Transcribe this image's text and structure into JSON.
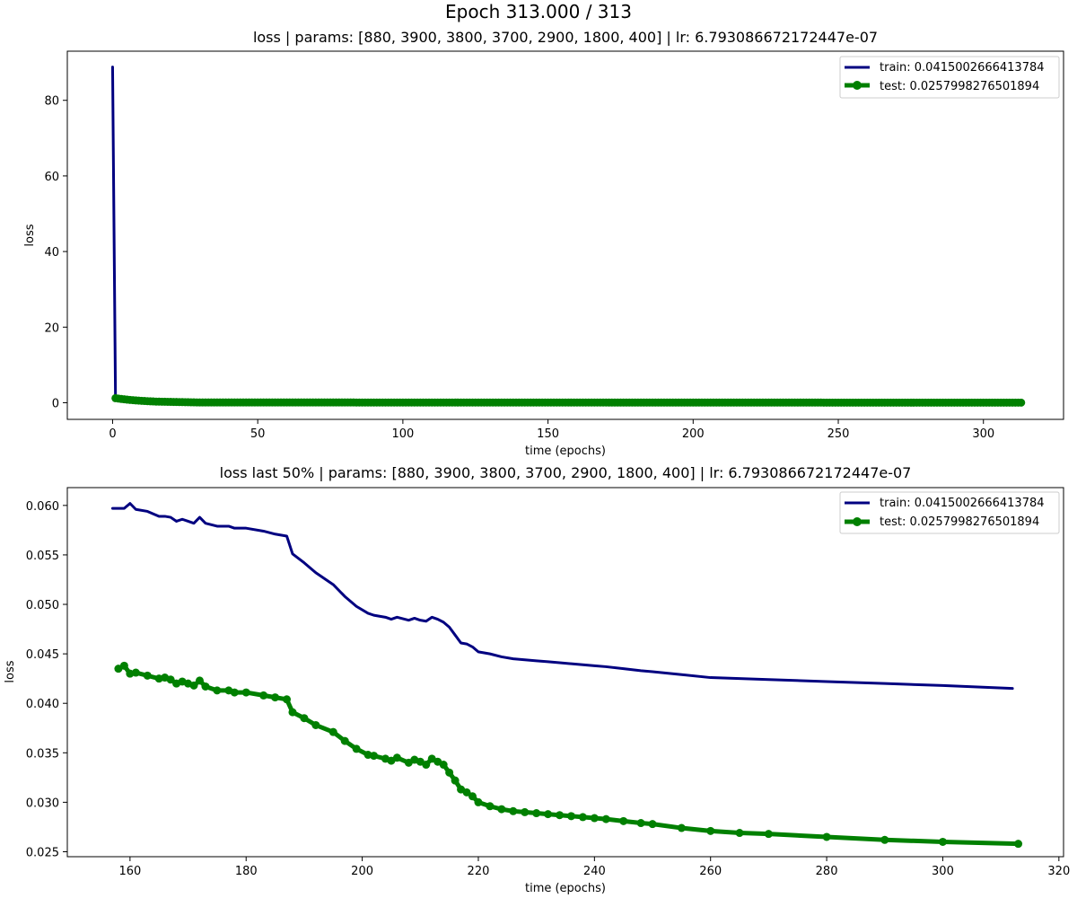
{
  "figure": {
    "suptitle": "Epoch 313.000 / 313"
  },
  "chart_data": [
    {
      "type": "line",
      "title": "loss  | params: [880, 3900, 3800, 3700, 2900, 1800, 400] | lr: 6.793086672172447e-07",
      "xlabel": "time (epochs)",
      "ylabel": "loss",
      "xlim": [
        -15.6,
        327.6
      ],
      "ylim": [
        -4.4,
        93.0
      ],
      "xticks": [
        0,
        50,
        100,
        150,
        200,
        250,
        300
      ],
      "yticks": [
        0,
        20,
        40,
        60,
        80
      ],
      "xtick_labels": [
        "0",
        "50",
        "100",
        "150",
        "200",
        "250",
        "300"
      ],
      "ytick_labels": [
        "0",
        "20",
        "40",
        "60",
        "80"
      ],
      "grid": false,
      "legend_position": "top-right",
      "series": [
        {
          "name": "train: 0.0415002666413784",
          "color": "#000080",
          "marker": "none",
          "x": [
            0,
            1,
            2,
            4,
            6,
            10,
            15,
            20,
            25,
            30,
            50,
            100,
            150,
            200,
            250,
            312
          ],
          "y": [
            88.8,
            1.2,
            0.7,
            0.5,
            0.4,
            0.3,
            0.2,
            0.15,
            0.1,
            0.08,
            0.07,
            0.06,
            0.055,
            0.05,
            0.045,
            0.0415
          ]
        },
        {
          "name": "test: 0.0257998276501894",
          "color": "#008000",
          "marker": "circle",
          "x_start": 1,
          "x_end": 313,
          "y_start": 1.2,
          "y_mid": 0.5,
          "y_end": 0.0258
        }
      ]
    },
    {
      "type": "line",
      "title": "loss last 50% | params: [880, 3900, 3800, 3700, 2900, 1800, 400] | lr: 6.793086672172447e-07",
      "xlabel": "time (epochs)",
      "ylabel": "loss",
      "xlim": [
        149.2,
        320.8
      ],
      "ylim": [
        0.0245,
        0.0618
      ],
      "xticks": [
        160,
        180,
        200,
        220,
        240,
        260,
        280,
        300,
        320
      ],
      "yticks": [
        0.025,
        0.03,
        0.035,
        0.04,
        0.045,
        0.05,
        0.055,
        0.06
      ],
      "xtick_labels": [
        "160",
        "180",
        "200",
        "220",
        "240",
        "260",
        "280",
        "300",
        "320"
      ],
      "ytick_labels": [
        "0.025",
        "0.030",
        "0.035",
        "0.040",
        "0.045",
        "0.050",
        "0.055",
        "0.060"
      ],
      "grid": false,
      "legend_position": "top-right",
      "series": [
        {
          "name": "train: 0.0415002666413784",
          "color": "#000080",
          "marker": "none",
          "x": [
            157,
            159,
            160,
            161,
            163,
            165,
            166,
            167,
            168,
            169,
            170,
            171,
            172,
            173,
            175,
            177,
            178,
            180,
            183,
            185,
            187,
            188,
            190,
            192,
            195,
            197,
            199,
            201,
            202,
            204,
            205,
            206,
            208,
            209,
            210,
            211,
            212,
            213,
            214,
            215,
            216,
            217,
            218,
            219,
            220,
            222,
            224,
            226,
            228,
            230,
            232,
            234,
            236,
            238,
            240,
            242,
            245,
            248,
            250,
            255,
            260,
            265,
            270,
            280,
            290,
            300,
            312
          ],
          "y": [
            0.0597,
            0.0597,
            0.0602,
            0.0596,
            0.0594,
            0.0589,
            0.0589,
            0.0588,
            0.0584,
            0.0586,
            0.0584,
            0.0582,
            0.0588,
            0.0582,
            0.0579,
            0.0579,
            0.0577,
            0.0577,
            0.0574,
            0.0571,
            0.0569,
            0.0551,
            0.0542,
            0.0532,
            0.052,
            0.0508,
            0.0498,
            0.0491,
            0.0489,
            0.0487,
            0.0485,
            0.0487,
            0.0484,
            0.0486,
            0.0484,
            0.0483,
            0.0487,
            0.0485,
            0.0482,
            0.0477,
            0.0469,
            0.0461,
            0.046,
            0.0457,
            0.0452,
            0.045,
            0.0447,
            0.0445,
            0.0444,
            0.0443,
            0.0442,
            0.0441,
            0.044,
            0.0439,
            0.0438,
            0.0437,
            0.0435,
            0.0433,
            0.0432,
            0.0429,
            0.0426,
            0.0425,
            0.0424,
            0.0422,
            0.042,
            0.0418,
            0.0415
          ]
        },
        {
          "name": "test: 0.0257998276501894",
          "color": "#008000",
          "marker": "circle",
          "x": [
            158,
            159,
            160,
            161,
            163,
            165,
            166,
            167,
            168,
            169,
            170,
            171,
            172,
            173,
            175,
            177,
            178,
            180,
            183,
            185,
            187,
            188,
            190,
            192,
            195,
            197,
            199,
            201,
            202,
            204,
            205,
            206,
            208,
            209,
            210,
            211,
            212,
            213,
            214,
            215,
            216,
            217,
            218,
            219,
            220,
            222,
            224,
            226,
            228,
            230,
            232,
            234,
            236,
            238,
            240,
            242,
            245,
            248,
            250,
            255,
            260,
            265,
            270,
            280,
            290,
            300,
            313
          ],
          "y": [
            0.0435,
            0.0438,
            0.043,
            0.0431,
            0.0428,
            0.0425,
            0.0426,
            0.0424,
            0.042,
            0.0422,
            0.042,
            0.0418,
            0.0423,
            0.0417,
            0.0413,
            0.0413,
            0.0411,
            0.0411,
            0.0408,
            0.0406,
            0.0404,
            0.0391,
            0.0385,
            0.0378,
            0.0371,
            0.0362,
            0.0354,
            0.0348,
            0.0347,
            0.0344,
            0.0342,
            0.0345,
            0.034,
            0.0343,
            0.0341,
            0.0338,
            0.0344,
            0.0341,
            0.0338,
            0.033,
            0.0322,
            0.0313,
            0.031,
            0.0306,
            0.03,
            0.0296,
            0.0293,
            0.0291,
            0.029,
            0.0289,
            0.0288,
            0.0287,
            0.0286,
            0.0285,
            0.0284,
            0.0283,
            0.0281,
            0.0279,
            0.0278,
            0.0274,
            0.0271,
            0.0269,
            0.0268,
            0.0265,
            0.0262,
            0.026,
            0.0258
          ]
        }
      ]
    }
  ]
}
